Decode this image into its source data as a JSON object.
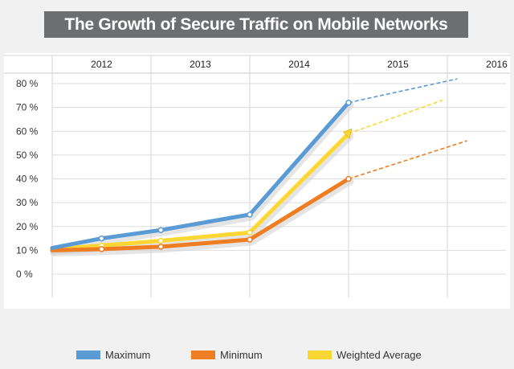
{
  "title": "The Growth of Secure Traffic on Mobile Networks",
  "chart_data": {
    "type": "line",
    "title": "The Growth of Secure Traffic on Mobile Networks",
    "xlabel": "",
    "ylabel": "",
    "x": [
      "2012",
      "2013",
      "2014",
      "2015",
      "2016"
    ],
    "ylim": [
      0,
      80
    ],
    "yticks": [
      0,
      10,
      20,
      30,
      40,
      50,
      60,
      70,
      80
    ],
    "ytick_suffix": " %",
    "grid": true,
    "legend_position": "bottom",
    "series": [
      {
        "name": "Maximum",
        "color": "#5b9bd5",
        "points": [
          {
            "x": 2011.5,
            "y": 11
          },
          {
            "x": 2012.0,
            "y": 15
          },
          {
            "x": 2012.6,
            "y": 18.5
          },
          {
            "x": 2013.5,
            "y": 25
          },
          {
            "x": 2014.5,
            "y": 72
          }
        ],
        "projection": [
          {
            "x": 2014.5,
            "y": 72
          },
          {
            "x": 2015.6,
            "y": 82
          }
        ]
      },
      {
        "name": "Minimum",
        "color": "#ef7d22",
        "points": [
          {
            "x": 2011.5,
            "y": 10
          },
          {
            "x": 2012.0,
            "y": 10.5
          },
          {
            "x": 2012.6,
            "y": 11.5
          },
          {
            "x": 2013.5,
            "y": 14.5
          },
          {
            "x": 2014.5,
            "y": 40
          }
        ],
        "projection": [
          {
            "x": 2014.5,
            "y": 40
          },
          {
            "x": 2015.7,
            "y": 56
          }
        ]
      },
      {
        "name": "Weighted Average",
        "color": "#fcd733",
        "points": [
          {
            "x": 2011.5,
            "y": 10.5
          },
          {
            "x": 2012.0,
            "y": 12
          },
          {
            "x": 2012.6,
            "y": 14
          },
          {
            "x": 2013.5,
            "y": 17.5
          },
          {
            "x": 2014.5,
            "y": 59
          }
        ],
        "projection": [
          {
            "x": 2014.5,
            "y": 59
          },
          {
            "x": 2015.45,
            "y": 73
          }
        ]
      }
    ]
  }
}
